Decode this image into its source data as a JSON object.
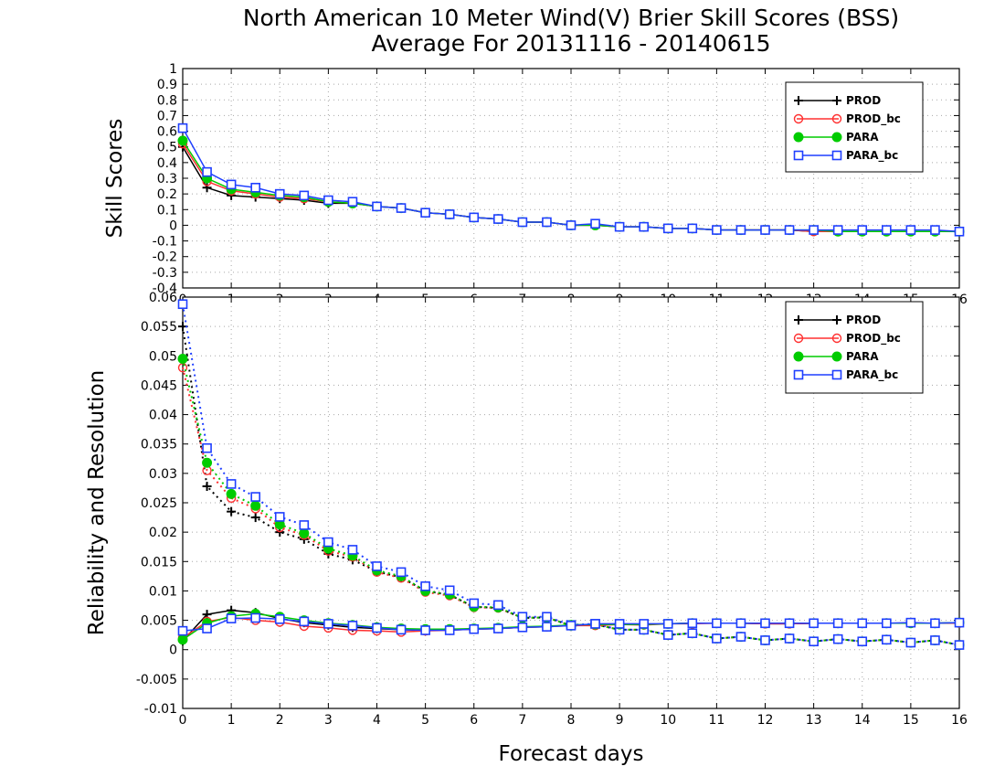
{
  "chart_data": {
    "title": "North American 10 Meter Wind(V) Brier Skill Scores (BSS)",
    "subtitle": "Average For 20131116 - 20140615",
    "xlabel": "Forecast days",
    "x": [
      0,
      0.5,
      1,
      1.5,
      2,
      2.5,
      3,
      3.5,
      4,
      4.5,
      5,
      5.5,
      6,
      6.5,
      7,
      7.5,
      8,
      8.5,
      9,
      9.5,
      10,
      10.5,
      11,
      11.5,
      12,
      12.5,
      13,
      13.5,
      14,
      14.5,
      15,
      15.5,
      16
    ],
    "xlim": [
      0,
      16
    ],
    "xticks": [
      "0",
      "1",
      "2",
      "3",
      "4",
      "5",
      "6",
      "7",
      "8",
      "9",
      "10",
      "11",
      "12",
      "13",
      "14",
      "15",
      "16"
    ],
    "legend": [
      "PROD",
      "PROD_bc",
      "PARA",
      "PARA_bc"
    ],
    "legend_placement": "top-right",
    "grid": true,
    "colors": {
      "PROD": "#000000",
      "PROD_bc": "#ff3030",
      "PARA": "#00cc00",
      "PARA_bc": "#1f3fff"
    },
    "panels": [
      {
        "type": "line",
        "ylabel": "Skill Scores",
        "ylim": [
          -0.4,
          1
        ],
        "yticks": [
          "-0.4",
          "-0.3",
          "-0.2",
          "-0.1",
          "0",
          "0.1",
          "0.2",
          "0.3",
          "0.4",
          "0.5",
          "0.6",
          "0.7",
          "0.8",
          "0.9",
          "1"
        ],
        "series": [
          {
            "name": "PROD",
            "values": [
              0.5,
              0.24,
              0.19,
              0.18,
              0.17,
              0.16,
              0.14,
              0.14,
              0.12,
              0.11,
              0.08,
              0.07,
              0.05,
              0.04,
              0.02,
              0.02,
              0.0,
              0.0,
              -0.01,
              -0.01,
              -0.02,
              -0.02,
              -0.03,
              -0.03,
              -0.03,
              -0.03,
              -0.04,
              -0.04,
              -0.04,
              -0.04,
              -0.04,
              -0.04,
              -0.04
            ]
          },
          {
            "name": "PROD_bc",
            "values": [
              0.52,
              0.28,
              0.22,
              0.2,
              0.18,
              0.17,
              0.15,
              0.14,
              0.12,
              0.11,
              0.08,
              0.07,
              0.05,
              0.04,
              0.02,
              0.02,
              0.0,
              0.0,
              -0.01,
              -0.01,
              -0.02,
              -0.02,
              -0.03,
              -0.03,
              -0.03,
              -0.03,
              -0.04,
              -0.04,
              -0.04,
              -0.04,
              -0.04,
              -0.04,
              -0.04
            ]
          },
          {
            "name": "PARA",
            "values": [
              0.54,
              0.3,
              0.23,
              0.21,
              0.19,
              0.18,
              0.15,
              0.14,
              0.12,
              0.11,
              0.08,
              0.07,
              0.05,
              0.04,
              0.02,
              0.02,
              0.0,
              0.0,
              -0.01,
              -0.01,
              -0.02,
              -0.02,
              -0.03,
              -0.03,
              -0.03,
              -0.03,
              -0.03,
              -0.04,
              -0.04,
              -0.04,
              -0.04,
              -0.04,
              -0.04
            ]
          },
          {
            "name": "PARA_bc",
            "values": [
              0.62,
              0.34,
              0.26,
              0.24,
              0.2,
              0.19,
              0.16,
              0.15,
              0.12,
              0.11,
              0.08,
              0.07,
              0.05,
              0.04,
              0.02,
              0.02,
              0.0,
              0.01,
              -0.01,
              -0.01,
              -0.02,
              -0.02,
              -0.03,
              -0.03,
              -0.03,
              -0.03,
              -0.03,
              -0.03,
              -0.03,
              -0.03,
              -0.03,
              -0.03,
              -0.04
            ]
          }
        ]
      },
      {
        "type": "line",
        "ylabel": "Reliability and Resolution",
        "ylim": [
          -0.01,
          0.06
        ],
        "yticks": [
          "-0.01",
          "-0.005",
          "0",
          "0.005",
          "0.01",
          "0.015",
          "0.02",
          "0.025",
          "0.03",
          "0.035",
          "0.04",
          "0.045",
          "0.05",
          "0.055",
          "0.06"
        ],
        "series": [
          {
            "name": "PROD",
            "kind": "resolution",
            "values": [
              0.055,
              0.0278,
              0.0235,
              0.0225,
              0.02,
              0.0188,
              0.0163,
              0.0153,
              0.0133,
              0.0123,
              0.01,
              0.0093,
              0.0073,
              0.0071,
              0.0054,
              0.0055,
              0.0041,
              0.0043,
              0.0034,
              0.0034,
              0.0025,
              0.0028,
              0.0019,
              0.0022,
              0.0016,
              0.0019,
              0.0014,
              0.0018,
              0.0014,
              0.0017,
              0.0012,
              0.0016,
              0.0008
            ]
          },
          {
            "name": "PROD_bc",
            "kind": "resolution",
            "values": [
              0.048,
              0.0305,
              0.0258,
              0.024,
              0.0208,
              0.0195,
              0.0168,
              0.0158,
              0.0132,
              0.0122,
              0.0098,
              0.0092,
              0.0072,
              0.0071,
              0.0054,
              0.0055,
              0.0041,
              0.0043,
              0.0034,
              0.0034,
              0.0025,
              0.0028,
              0.0019,
              0.0022,
              0.0016,
              0.0019,
              0.0014,
              0.0018,
              0.0014,
              0.0017,
              0.0012,
              0.0016,
              0.0008
            ]
          },
          {
            "name": "PARA",
            "kind": "resolution",
            "values": [
              0.0495,
              0.0318,
              0.0265,
              0.0245,
              0.0213,
              0.0198,
              0.0172,
              0.016,
              0.0135,
              0.0125,
              0.01,
              0.0094,
              0.0073,
              0.0072,
              0.0054,
              0.0055,
              0.0041,
              0.0043,
              0.0034,
              0.0034,
              0.0025,
              0.0028,
              0.0019,
              0.0022,
              0.0016,
              0.0019,
              0.0014,
              0.0018,
              0.0014,
              0.0017,
              0.0012,
              0.0016,
              0.0008
            ]
          },
          {
            "name": "PARA_bc",
            "kind": "resolution",
            "values": [
              0.0588,
              0.0343,
              0.0282,
              0.026,
              0.0226,
              0.0212,
              0.0183,
              0.017,
              0.0142,
              0.0132,
              0.0108,
              0.0101,
              0.0079,
              0.0076,
              0.0056,
              0.0056,
              0.0042,
              0.0044,
              0.0034,
              0.0034,
              0.0025,
              0.0028,
              0.0019,
              0.0022,
              0.0016,
              0.0019,
              0.0014,
              0.0018,
              0.0014,
              0.0017,
              0.0012,
              0.0016,
              0.0008
            ]
          },
          {
            "name": "PROD",
            "kind": "reliability",
            "values": [
              0.0015,
              0.006,
              0.0067,
              0.0063,
              0.0053,
              0.0046,
              0.0042,
              0.0038,
              0.0036,
              0.0034,
              0.0033,
              0.0034,
              0.0035,
              0.0036,
              0.0038,
              0.0039,
              0.0042,
              0.0043,
              0.0043,
              0.0043,
              0.0044,
              0.0045,
              0.0045,
              0.0045,
              0.0044,
              0.0044,
              0.0045,
              0.0045,
              0.0045,
              0.0045,
              0.0045,
              0.0045,
              0.0046
            ]
          },
          {
            "name": "PROD_bc",
            "kind": "reliability",
            "values": [
              0.002,
              0.0048,
              0.0055,
              0.005,
              0.0047,
              0.004,
              0.0037,
              0.0033,
              0.0032,
              0.003,
              0.0032,
              0.0033,
              0.0035,
              0.0036,
              0.0038,
              0.0039,
              0.0041,
              0.0041,
              0.0043,
              0.0042,
              0.0044,
              0.0044,
              0.0045,
              0.0045,
              0.0044,
              0.0044,
              0.0045,
              0.0045,
              0.0045,
              0.0045,
              0.0045,
              0.0045,
              0.0045
            ]
          },
          {
            "name": "PARA",
            "kind": "reliability",
            "values": [
              0.0017,
              0.0045,
              0.0057,
              0.0061,
              0.0056,
              0.005,
              0.0045,
              0.0042,
              0.0038,
              0.0036,
              0.0035,
              0.0035,
              0.0036,
              0.0037,
              0.0039,
              0.004,
              0.0042,
              0.0043,
              0.0043,
              0.0043,
              0.0044,
              0.0045,
              0.0045,
              0.0045,
              0.0045,
              0.0045,
              0.0045,
              0.0045,
              0.0045,
              0.0045,
              0.0045,
              0.0045,
              0.0046
            ]
          },
          {
            "name": "PARA_bc",
            "kind": "reliability",
            "values": [
              0.0032,
              0.0036,
              0.0053,
              0.0054,
              0.0052,
              0.0048,
              0.0044,
              0.0041,
              0.0037,
              0.0034,
              0.0033,
              0.0033,
              0.0035,
              0.0036,
              0.0038,
              0.0039,
              0.0041,
              0.0044,
              0.0044,
              0.0044,
              0.0044,
              0.0045,
              0.0045,
              0.0045,
              0.0045,
              0.0045,
              0.0045,
              0.0045,
              0.0045,
              0.0045,
              0.0046,
              0.0045,
              0.0046
            ]
          }
        ]
      }
    ]
  }
}
